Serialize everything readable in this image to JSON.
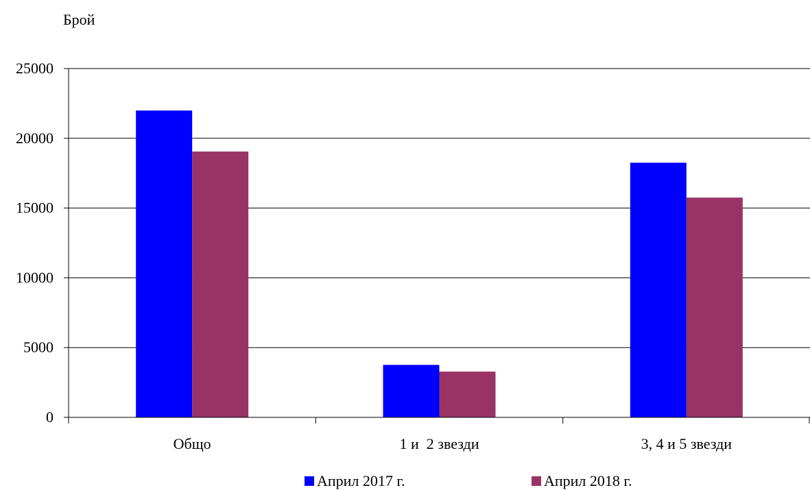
{
  "chart_data": {
    "type": "bar",
    "title": "",
    "xlabel": "",
    "ylabel": "Брой",
    "ylim": [
      0,
      25000
    ],
    "yticks": [
      0,
      5000,
      10000,
      15000,
      20000,
      25000
    ],
    "grid": true,
    "legend": "bottom",
    "categories": [
      "Общо",
      "1 и  2 звезди",
      "3, 4 и 5 звезди"
    ],
    "series": [
      {
        "name": "Април 2017 г.",
        "color": "#0000ff",
        "values": [
          21990,
          3760,
          18250
        ]
      },
      {
        "name": "Април 2018 г.",
        "color": "#993366",
        "values": [
          19050,
          3280,
          15750
        ]
      }
    ]
  }
}
